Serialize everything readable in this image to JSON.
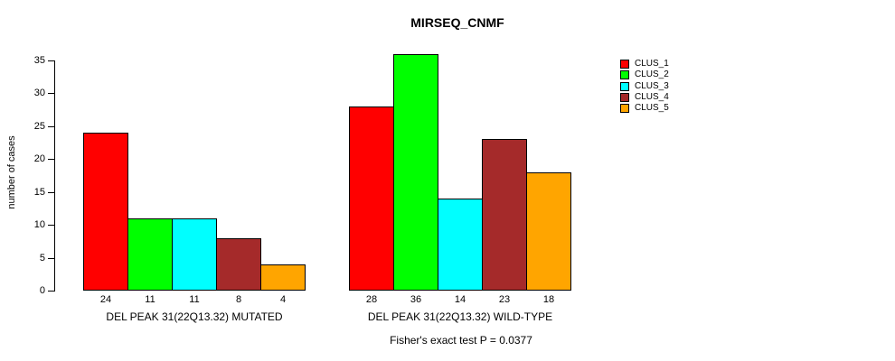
{
  "chart_data": {
    "type": "bar",
    "title": "MIRSEQ_CNMF",
    "ylabel": "number of cases",
    "xlabel": "",
    "ylim": [
      0,
      35
    ],
    "yticks": [
      0,
      5,
      10,
      15,
      20,
      25,
      30,
      35
    ],
    "grid": false,
    "legend_position": "right",
    "categories": [
      "DEL PEAK 31(22Q13.32) MUTATED",
      "DEL PEAK 31(22Q13.32) WILD-TYPE"
    ],
    "series": [
      {
        "name": "CLUS_1",
        "color": "#FF0000",
        "values": [
          24,
          28
        ]
      },
      {
        "name": "CLUS_2",
        "color": "#00FF00",
        "values": [
          11,
          36
        ]
      },
      {
        "name": "CLUS_3",
        "color": "#00FFFF",
        "values": [
          11,
          14
        ]
      },
      {
        "name": "CLUS_4",
        "color": "#A52A2A",
        "values": [
          8,
          23
        ]
      },
      {
        "name": "CLUS_5",
        "color": "#FFA500",
        "values": [
          4,
          18
        ]
      }
    ],
    "bar_value_labels_shown": true,
    "annotation": "Fisher's exact test P = 0.0377",
    "axis_color": "#000000",
    "bar_border_color": "#000000"
  }
}
